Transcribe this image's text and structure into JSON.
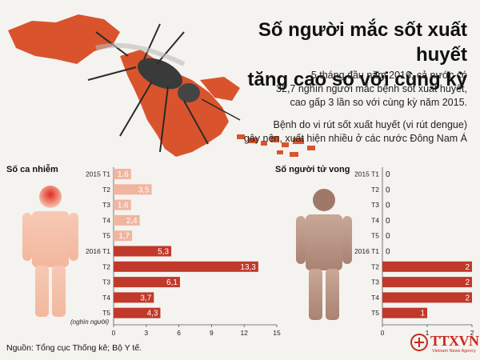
{
  "title_line1": "Số người mắc sốt xuất huyết",
  "title_line2": "tăng cao so với cùng kỳ",
  "lead_lines": [
    "5 tháng đầu năm 2016, cả nước có",
    "32,7 nghìn người mắc bệnh sốt xuất huyết,",
    "cao gấp 3 lần so với cùng kỳ năm 2015."
  ],
  "lead2_lines": [
    "Bệnh do vi rút sốt xuất huyết (vi rút dengue)",
    "gây nên, xuất hiện nhiều ở các nước Đông Nam Á"
  ],
  "source": "Nguồn: Tổng cục Thống kê; Bộ Y tế.",
  "logo": {
    "text": "TTXVN",
    "sub": "Vietnam News Agency"
  },
  "colors": {
    "light_bar": "#f1b59f",
    "dark_bar": "#c0392b",
    "map": "#d9542c",
    "title": "#111111"
  },
  "chart_data": [
    {
      "type": "bar",
      "orientation": "horizontal",
      "title": "Số ca nhiễm",
      "xlabel": "(nghìn người)",
      "categories": [
        "2015 T1",
        "T2",
        "T3",
        "T4",
        "T5",
        "2016 T1",
        "T2",
        "T3",
        "T4",
        "T5"
      ],
      "values": [
        1.6,
        3.5,
        1.6,
        2.4,
        1.7,
        5.3,
        13.3,
        6.1,
        3.7,
        4.3
      ],
      "value_labels": [
        "1,6",
        "3,5",
        "1,6",
        "2,4",
        "1,7",
        "5,3",
        "13,3",
        "6,1",
        "3,7",
        "4,3"
      ],
      "xticks": [
        0,
        3,
        6,
        9,
        12,
        15
      ],
      "xlim": [
        0,
        15
      ],
      "grid": false
    },
    {
      "type": "bar",
      "orientation": "horizontal",
      "title": "Số người tử vong",
      "categories": [
        "2015 T1",
        "T2",
        "T3",
        "T4",
        "T5",
        "2016 T1",
        "T2",
        "T3",
        "T4",
        "T5"
      ],
      "values": [
        0,
        0,
        0,
        0,
        0,
        0,
        2,
        2,
        2,
        1
      ],
      "value_labels": [
        "0",
        "0",
        "0",
        "0",
        "0",
        "0",
        "2",
        "2",
        "2",
        "1"
      ],
      "xticks": [
        0,
        1,
        2
      ],
      "xlim": [
        0,
        2
      ],
      "grid": false
    }
  ]
}
